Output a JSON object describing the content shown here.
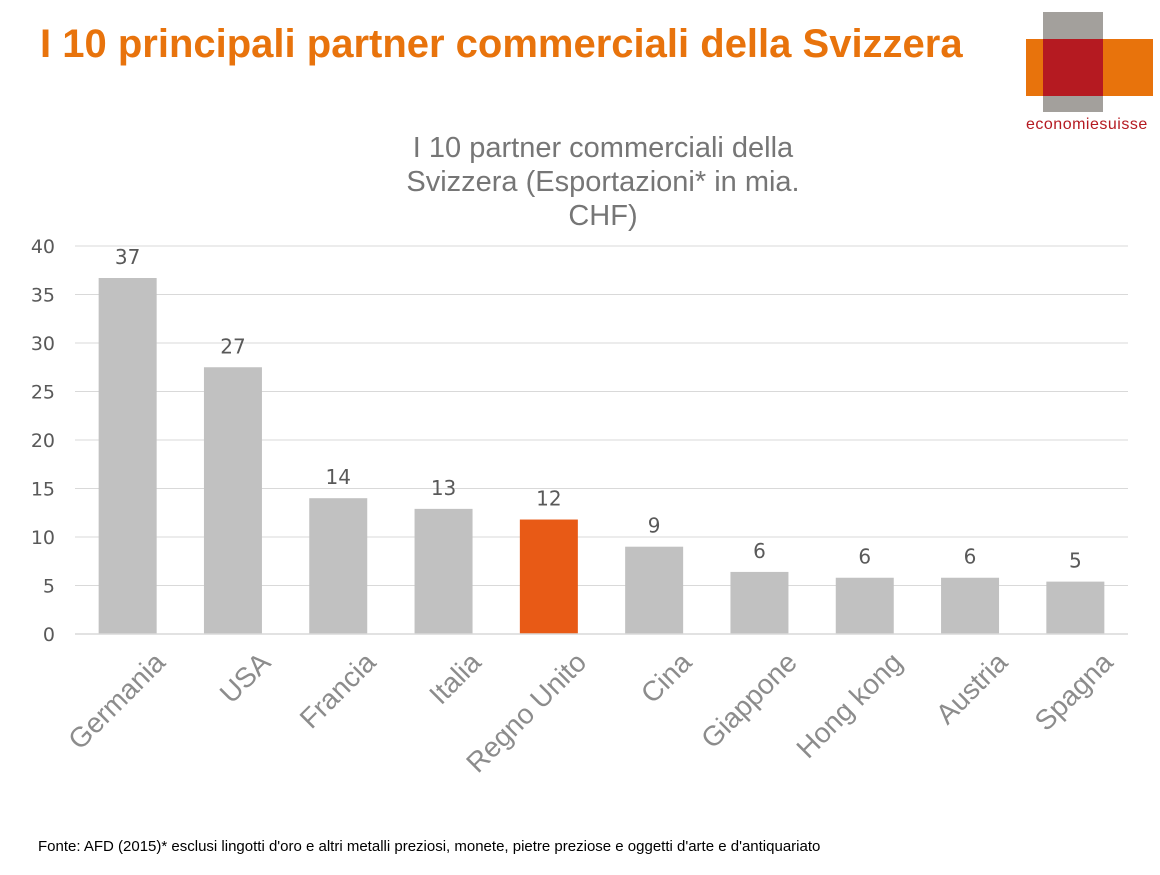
{
  "slide": {
    "title": "I 10 principali partner commerciali della Svizzera",
    "source_note": "Fonte: AFD (2015)* esclusi lingotti d'oro e altri metalli preziosi, monete, pietre preziose e oggetti d'arte e d'antiquariato"
  },
  "logo": {
    "text": "economiesuisse"
  },
  "colors": {
    "title": "#e8730c",
    "bar_default": "#c1c1c1",
    "bar_highlight": "#e85a16",
    "gridline": "#d9d9d9",
    "axis_text": "#595959",
    "chart_title": "#767676",
    "category_text": "#8c8c8c"
  },
  "chart_data": {
    "type": "bar",
    "title": "I 10 partner commerciali della Svizzera (Esportazioni* in mia. CHF)",
    "title_lines": [
      "I 10 partner commerciali della",
      "Svizzera (Esportazioni* in mia.",
      "CHF)"
    ],
    "categories": [
      "Germania",
      "USA",
      "Francia",
      "Italia",
      "Regno Unito",
      "Cina",
      "Giappone",
      "Hong kong",
      "Austria",
      "Spagna"
    ],
    "values": [
      36.7,
      27.5,
      14.0,
      12.9,
      11.8,
      9.0,
      6.4,
      5.8,
      5.8,
      5.4
    ],
    "data_labels": [
      "37",
      "27",
      "14",
      "13",
      "12",
      "9",
      "6",
      "6",
      "6",
      "5"
    ],
    "highlight": "Regno Unito",
    "ylim": [
      0,
      40
    ],
    "yticks": [
      0,
      5,
      10,
      15,
      20,
      25,
      30,
      35,
      40
    ],
    "grid": true,
    "legend": "none",
    "xlabel": "",
    "ylabel": ""
  }
}
